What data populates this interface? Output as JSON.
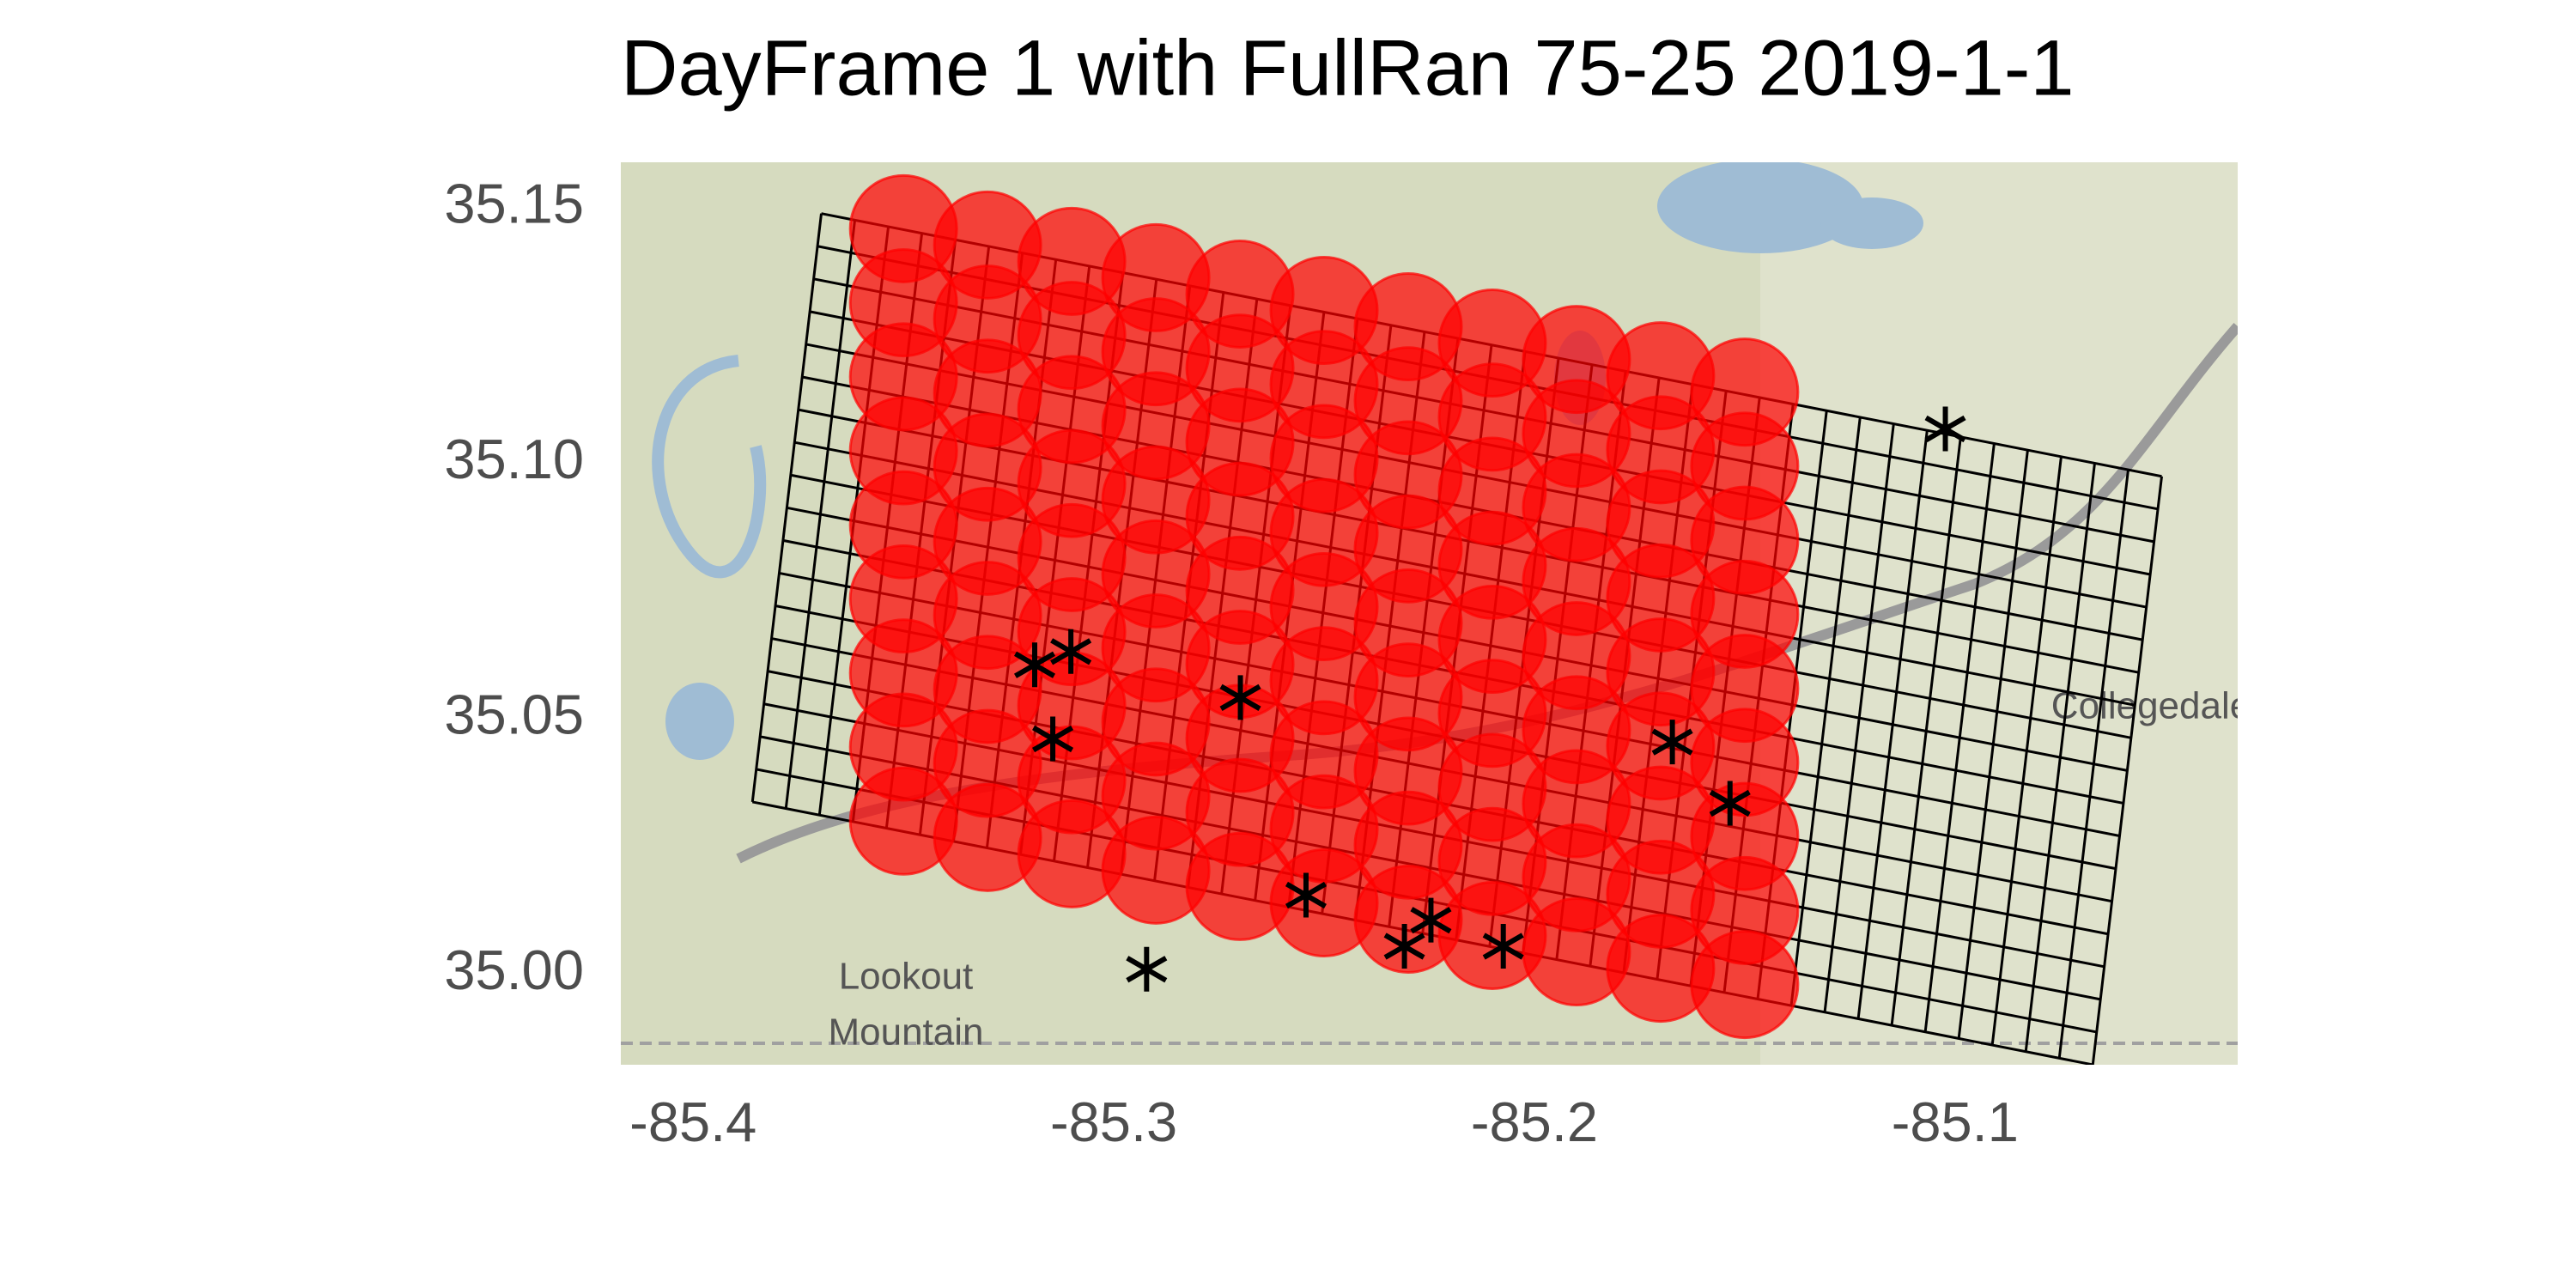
{
  "chart_data": {
    "type": "scatter",
    "title": "DayFrame 1 with FullRan 75-25 2019-1-1",
    "xlim": [
      -85.4172,
      -85.0328
    ],
    "ylim": [
      34.9823,
      35.159
    ],
    "xticks": [
      -85.4,
      -85.3,
      -85.2,
      -85.1
    ],
    "yticks": [
      {
        "value": 35,
        "label": "35.00"
      },
      35.05,
      {
        "value": 35.1,
        "label": "35.10"
      },
      35.15
    ],
    "series": [
      {
        "color": "#ff0000",
        "alpha": 0.7,
        "marker": "circle",
        "x": [
          -85.35,
          -85.33,
          -85.31,
          -85.29,
          -85.27,
          -85.25,
          -85.23,
          -85.21,
          -85.19,
          -85.17,
          -85.15,
          -85.35,
          -85.33,
          -85.31,
          -85.29,
          -85.27,
          -85.25,
          -85.23,
          -85.21,
          -85.19,
          -85.17,
          -85.15,
          -85.35,
          -85.33,
          -85.31,
          -85.29,
          -85.27,
          -85.25,
          -85.23,
          -85.21,
          -85.19,
          -85.17,
          -85.15,
          -85.35,
          -85.33,
          -85.31,
          -85.29,
          -85.27,
          -85.25,
          -85.23,
          -85.21,
          -85.19,
          -85.17,
          -85.15,
          -85.35,
          -85.33,
          -85.31,
          -85.29,
          -85.27,
          -85.25,
          -85.23,
          -85.21,
          -85.19,
          -85.17,
          -85.15,
          -85.35,
          -85.33,
          -85.31,
          -85.29,
          -85.27,
          -85.25,
          -85.23,
          -85.21,
          -85.19,
          -85.17,
          -85.15,
          -85.35,
          -85.33,
          -85.31,
          -85.29,
          -85.27,
          -85.25,
          -85.23,
          -85.21,
          -85.19,
          -85.17,
          -85.15,
          -85.35,
          -85.33,
          -85.31,
          -85.29,
          -85.27,
          -85.25,
          -85.23,
          -85.21,
          -85.19,
          -85.17,
          -85.15,
          -85.35,
          -85.33,
          -85.31,
          -85.29,
          -85.27,
          -85.25,
          -85.23,
          -85.21,
          -85.19,
          -85.17,
          -85.15
        ],
        "y": [
          35.146,
          35.1428,
          35.1396,
          35.1364,
          35.1332,
          35.13,
          35.1268,
          35.1236,
          35.1204,
          35.1172,
          35.114,
          35.1315,
          35.1283,
          35.1251,
          35.1219,
          35.1187,
          35.1155,
          35.1123,
          35.1091,
          35.1059,
          35.1027,
          35.0995,
          35.117,
          35.1138,
          35.1106,
          35.1074,
          35.1042,
          35.101,
          35.0978,
          35.0946,
          35.0914,
          35.0882,
          35.085,
          35.1025,
          35.0993,
          35.0961,
          35.0929,
          35.0897,
          35.0865,
          35.0833,
          35.0801,
          35.0769,
          35.0737,
          35.0705,
          35.088,
          35.0848,
          35.0816,
          35.0784,
          35.0752,
          35.072,
          35.0688,
          35.0656,
          35.0624,
          35.0592,
          35.056,
          35.0735,
          35.0703,
          35.0671,
          35.0639,
          35.0607,
          35.0575,
          35.0543,
          35.0511,
          35.0479,
          35.0447,
          35.0415,
          35.059,
          35.0558,
          35.0526,
          35.0494,
          35.0462,
          35.043,
          35.0398,
          35.0366,
          35.0334,
          35.0302,
          35.027,
          35.0445,
          35.0413,
          35.0381,
          35.0349,
          35.0317,
          35.0285,
          35.0253,
          35.0221,
          35.0189,
          35.0157,
          35.0125,
          35.03,
          35.0268,
          35.0236,
          35.0204,
          35.0172,
          35.014,
          35.0108,
          35.0076,
          35.0044,
          35.0012,
          34.998
        ]
      },
      {
        "color": "#000000",
        "marker": "star",
        "x": [
          -85.3188,
          -85.3102,
          -85.3145,
          -85.2699,
          -85.1672,
          -85.1535,
          -85.1023,
          -85.2543,
          -85.2309,
          -85.2246,
          -85.2074,
          -85.2922
        ],
        "y": [
          35.0606,
          35.0632,
          35.0461,
          35.0542,
          35.0455,
          35.0335,
          35.1068,
          35.0155,
          35.0055,
          35.0106,
          35.0055,
          35.001
        ]
      }
    ]
  }
}
